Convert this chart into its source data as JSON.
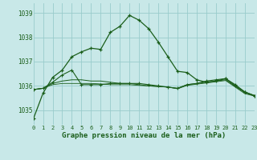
{
  "title": "Graphe pression niveau de la mer (hPa)",
  "background_color": "#c8e8e8",
  "grid_color": "#99cccc",
  "line_color": "#1a5e1a",
  "xlim": [
    0,
    23
  ],
  "ylim": [
    1034.4,
    1039.4
  ],
  "yticks": [
    1035,
    1036,
    1037,
    1038,
    1039
  ],
  "xticks": [
    0,
    1,
    2,
    3,
    4,
    5,
    6,
    7,
    8,
    9,
    10,
    11,
    12,
    13,
    14,
    15,
    16,
    17,
    18,
    19,
    20,
    21,
    22,
    23
  ],
  "series1": [
    1034.65,
    1035.7,
    1036.35,
    1036.65,
    1037.2,
    1037.4,
    1037.55,
    1037.5,
    1038.2,
    1038.45,
    1038.9,
    1038.7,
    1038.35,
    1037.8,
    1037.2,
    1036.6,
    1036.55,
    1036.25,
    1036.15,
    1036.2,
    1036.3,
    1036.05,
    1035.75,
    1035.6
  ],
  "series2": [
    1035.85,
    1035.9,
    1036.15,
    1036.45,
    1036.65,
    1036.05,
    1036.05,
    1036.05,
    1036.1,
    1036.1,
    1036.1,
    1036.1,
    1036.05,
    1036.0,
    1035.95,
    1035.9,
    1036.05,
    1036.1,
    1036.2,
    1036.25,
    1036.3,
    1036.0,
    1035.75,
    1035.6
  ],
  "series3": [
    1035.85,
    1035.9,
    1036.1,
    1036.2,
    1036.25,
    1036.25,
    1036.2,
    1036.2,
    1036.15,
    1036.1,
    1036.1,
    1036.05,
    1036.0,
    1035.98,
    1035.95,
    1035.9,
    1036.05,
    1036.1,
    1036.15,
    1036.2,
    1036.25,
    1035.98,
    1035.72,
    1035.6
  ],
  "series4": [
    1035.85,
    1035.9,
    1036.05,
    1036.1,
    1036.1,
    1036.1,
    1036.1,
    1036.08,
    1036.05,
    1036.05,
    1036.05,
    1036.02,
    1036.0,
    1035.97,
    1035.95,
    1035.88,
    1036.02,
    1036.07,
    1036.12,
    1036.17,
    1036.22,
    1035.95,
    1035.68,
    1035.58
  ],
  "ytick_fontsize": 5.5,
  "xtick_fontsize": 5.0,
  "title_fontsize": 6.5
}
